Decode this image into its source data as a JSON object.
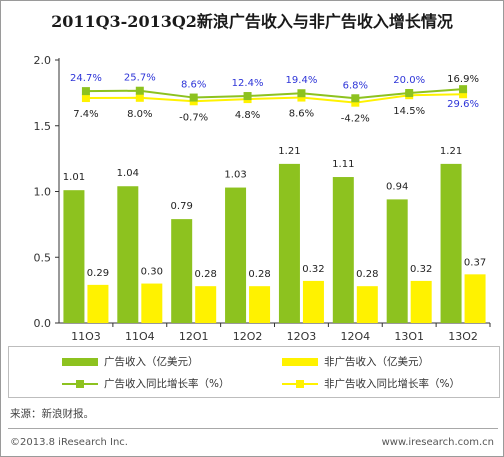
{
  "chart_data": {
    "type": "bar",
    "title": "2011Q3-2013Q2新浪广告收入与非广告收入增长情况",
    "categories": [
      "11Q3",
      "11Q4",
      "12Q1",
      "12Q2",
      "12Q3",
      "12Q4",
      "13Q1",
      "13Q2"
    ],
    "ylim": [
      0,
      2.0
    ],
    "yticks": [
      "0.0",
      "0.5",
      "1.0",
      "1.5",
      "2.0"
    ],
    "series": [
      {
        "name": "广告收入（亿美元）",
        "kind": "bar",
        "color": "#8DC21F",
        "values": [
          1.01,
          1.04,
          0.79,
          1.03,
          1.21,
          1.11,
          0.94,
          1.21
        ],
        "labels": [
          "1.01",
          "1.04",
          "0.79",
          "1.03",
          "1.21",
          "1.11",
          "0.94",
          "1.21"
        ]
      },
      {
        "name": "非广告收入（亿美元）",
        "kind": "bar",
        "color": "#FFF200",
        "values": [
          0.29,
          0.3,
          0.28,
          0.28,
          0.32,
          0.28,
          0.32,
          0.37
        ],
        "labels": [
          "0.29",
          "0.30",
          "0.28",
          "0.28",
          "0.32",
          "0.28",
          "0.32",
          "0.37"
        ]
      },
      {
        "name": "广告收入同比增长率（%）",
        "kind": "line",
        "color": "#8DC21F",
        "growth_pct": [
          24.7,
          25.7,
          8.6,
          12.4,
          19.4,
          6.8,
          20.0,
          29.6
        ],
        "labels": [
          "24.7%",
          "25.7%",
          "8.6%",
          "12.4%",
          "19.4%",
          "6.8%",
          "20.0%",
          "29.6%"
        ],
        "label_color": "#2E35D8"
      },
      {
        "name": "非广告收入同比增长率（%）",
        "kind": "line",
        "color": "#FFF200",
        "growth_pct": [
          7.4,
          8.0,
          -0.7,
          4.8,
          8.6,
          -4.2,
          14.5,
          16.9
        ],
        "labels": [
          "7.4%",
          "8.0%",
          "-0.7%",
          "4.8%",
          "8.6%",
          "-4.2%",
          "14.5%",
          "16.9%"
        ],
        "label_color": "#222222"
      }
    ],
    "grid": false,
    "legend_position": "bottom"
  },
  "source": "来源：新浪财报。",
  "copyright": "©2013.8 iResearch Inc.",
  "website": "www.iresearch.com.cn"
}
